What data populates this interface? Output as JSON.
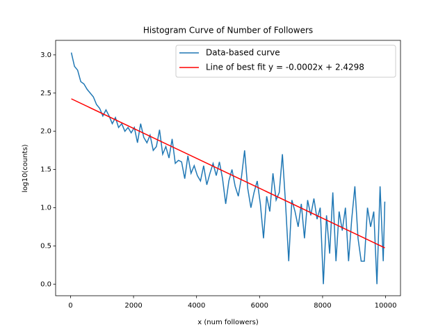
{
  "chart_data": {
    "type": "line",
    "title": "Histogram Curve of Number of Followers",
    "x_label": "x (num followers)",
    "y_label": "log10(counts)",
    "xlim": [
      -473,
      10473
    ],
    "ylim": [
      -0.152,
      3.19
    ],
    "xticks": [
      0,
      2000,
      4000,
      6000,
      8000,
      10000
    ],
    "yticks": [
      {
        "value": 0,
        "label": "0.0"
      },
      {
        "value": 0.5,
        "label": "0.5"
      },
      {
        "value": 1,
        "label": "1.0"
      },
      {
        "value": 1.5,
        "label": "1.5"
      },
      {
        "value": 2,
        "label": "2.0"
      },
      {
        "value": 2.5,
        "label": "2.5"
      },
      {
        "value": 3,
        "label": "3.0"
      }
    ],
    "grid": false,
    "legend": "upper right",
    "series": [
      {
        "name": "Data-based curve",
        "color": "#1f77b4",
        "x": [
          25,
          125,
          225,
          325,
          425,
          525,
          625,
          725,
          825,
          925,
          1025,
          1125,
          1225,
          1325,
          1425,
          1525,
          1625,
          1725,
          1825,
          1925,
          2025,
          2125,
          2225,
          2325,
          2425,
          2525,
          2625,
          2725,
          2825,
          2925,
          3025,
          3125,
          3225,
          3325,
          3425,
          3525,
          3625,
          3725,
          3825,
          3925,
          4025,
          4125,
          4225,
          4325,
          4425,
          4525,
          4625,
          4725,
          4825,
          4925,
          5025,
          5125,
          5225,
          5325,
          5425,
          5525,
          5625,
          5725,
          5825,
          5925,
          6025,
          6125,
          6225,
          6325,
          6425,
          6525,
          6625,
          6725,
          6825,
          6925,
          7025,
          7125,
          7225,
          7325,
          7425,
          7525,
          7625,
          7725,
          7825,
          7925,
          8025,
          8125,
          8225,
          8325,
          8425,
          8525,
          8625,
          8725,
          8825,
          8925,
          9025,
          9125,
          9225,
          9325,
          9425,
          9525,
          9625,
          9725,
          9825,
          9925,
          9975
        ],
        "values": [
          3.03,
          2.85,
          2.8,
          2.65,
          2.62,
          2.55,
          2.5,
          2.45,
          2.35,
          2.3,
          2.2,
          2.28,
          2.2,
          2.1,
          2.18,
          2.05,
          2.1,
          2.0,
          2.05,
          1.98,
          2.05,
          1.85,
          2.1,
          1.92,
          1.85,
          1.95,
          1.75,
          1.8,
          2.02,
          1.7,
          1.8,
          1.65,
          1.9,
          1.58,
          1.62,
          1.6,
          1.38,
          1.68,
          1.45,
          1.55,
          1.42,
          1.35,
          1.55,
          1.3,
          1.45,
          1.58,
          1.42,
          1.6,
          1.38,
          1.05,
          1.35,
          1.5,
          1.28,
          1.15,
          1.4,
          1.75,
          1.25,
          1.0,
          1.2,
          1.35,
          1.05,
          0.6,
          1.15,
          0.95,
          1.45,
          1.1,
          1.2,
          1.7,
          1.05,
          0.3,
          1.1,
          0.95,
          0.75,
          1.05,
          0.6,
          1.1,
          0.9,
          1.12,
          0.85,
          1.0,
          0.0,
          0.9,
          0.4,
          1.2,
          0.3,
          0.95,
          0.7,
          1.0,
          0.3,
          0.85,
          1.28,
          0.6,
          0.3,
          0.3,
          1.0,
          0.75,
          0.95,
          0.0,
          1.28,
          0.3,
          1.08
        ]
      },
      {
        "name": "Line of best fit y = -0.0002x + 2.4298",
        "color": "#ff0000",
        "x": [
          25,
          9975
        ],
        "values": [
          2.425,
          0.475
        ]
      }
    ]
  }
}
